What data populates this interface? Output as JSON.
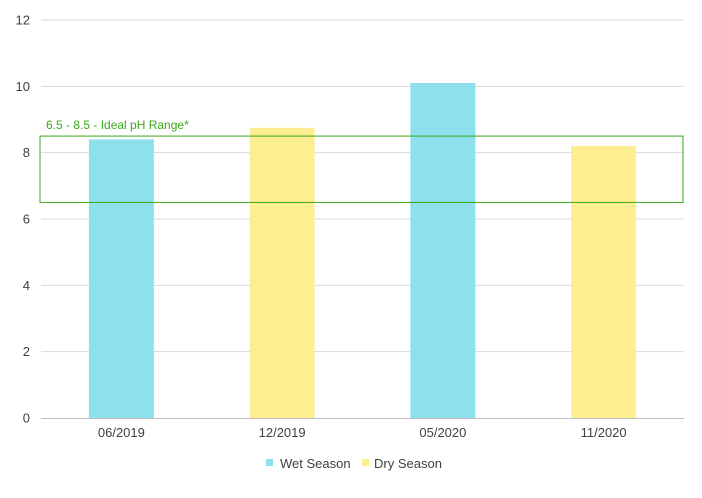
{
  "chart_data": {
    "type": "bar",
    "categories": [
      "06/2019",
      "12/2019",
      "05/2020",
      "11/2020"
    ],
    "values": [
      8.4,
      8.75,
      10.1,
      8.2
    ],
    "season": [
      "Wet Season",
      "Dry Season",
      "Wet Season",
      "Dry Season"
    ],
    "ylim": [
      0,
      12
    ],
    "yticks": [
      0,
      2,
      4,
      6,
      8,
      10,
      12
    ],
    "grid": true,
    "legend": {
      "placement": "bottom",
      "items": [
        {
          "label": "Wet Season",
          "color": "#8ee0ec"
        },
        {
          "label": "Dry Season",
          "color": "#fdee91"
        }
      ]
    },
    "annotation": {
      "label": "6.5 - 8.5 - Ideal pH Range*",
      "range": [
        6.5,
        8.5
      ],
      "color": "#3aa81a"
    },
    "colors": {
      "Wet Season": "#8ee0ec",
      "Dry Season": "#fdee91",
      "grid": "#d9d9d9",
      "axis": "#bfbfbf"
    }
  }
}
